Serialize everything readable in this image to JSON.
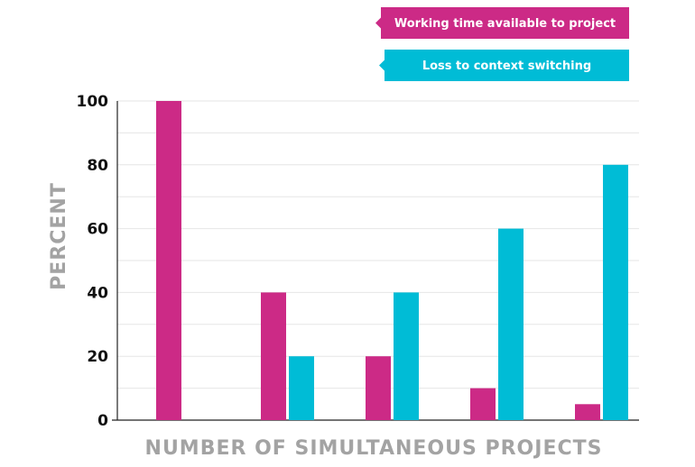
{
  "chart_data": {
    "type": "bar",
    "y_label": "PERCENT",
    "x_label": "NUMBER OF SIMULTANEOUS PROJECTS",
    "categories": [
      null,
      null,
      null,
      null,
      null
    ],
    "series": [
      {
        "name": "Working time available to project",
        "color": "#cc2a86",
        "values": [
          100,
          40,
          20,
          10,
          5
        ]
      },
      {
        "name": "Loss to context switching",
        "color": "#00bcd6",
        "values": [
          0,
          20,
          40,
          60,
          80
        ]
      }
    ],
    "ylim": [
      0,
      100
    ],
    "yticks": [
      0,
      20,
      40,
      60,
      80,
      100
    ],
    "minor_yticks": [
      10,
      30,
      50,
      70,
      90
    ],
    "grid": true,
    "legend": "top-right"
  }
}
